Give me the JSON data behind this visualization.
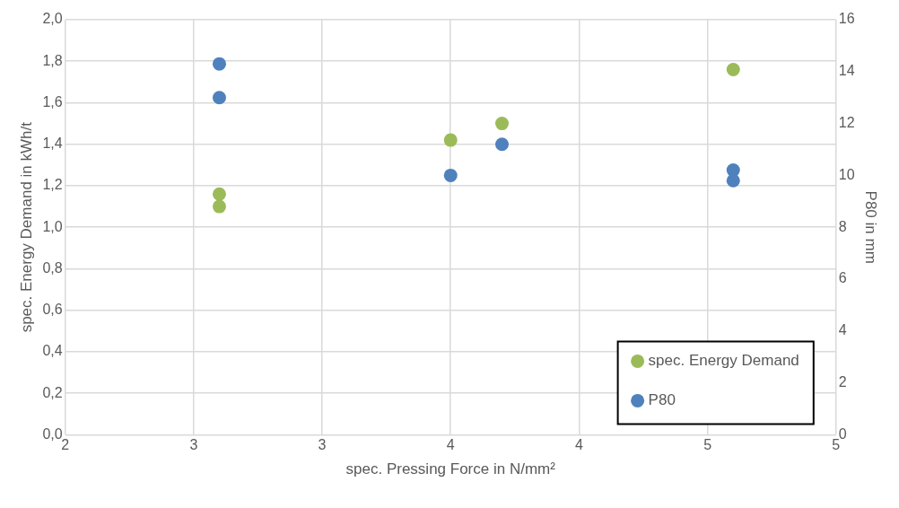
{
  "chart_data": {
    "type": "scatter",
    "xlabel": "spec. Pressing Force in N/mm²",
    "ylabel": "spec. Energy Demand in kWh/t",
    "y2label": "P80 in mm",
    "xlim": [
      2,
      5
    ],
    "xticks": [
      2,
      {
        "value": 2.5,
        "label": "3"
      },
      3,
      {
        "value": 3.5,
        "label": "4"
      },
      4,
      {
        "value": 4.5,
        "label": "5"
      },
      5
    ],
    "ylim": [
      0,
      2
    ],
    "yticks": [
      {
        "value": 0,
        "label": "0,0"
      },
      {
        "value": 0.2,
        "label": "0,2"
      },
      {
        "value": 0.4,
        "label": "0,4"
      },
      {
        "value": 0.6,
        "label": "0,6"
      },
      {
        "value": 0.8,
        "label": "0,8"
      },
      {
        "value": 1,
        "label": "1,0"
      },
      {
        "value": 1.2,
        "label": "1,2"
      },
      {
        "value": 1.4,
        "label": "1,4"
      },
      {
        "value": 1.6,
        "label": "1,6"
      },
      {
        "value": 1.8,
        "label": "1,8"
      },
      {
        "value": 2,
        "label": "2,0"
      }
    ],
    "y2lim": [
      0,
      16
    ],
    "y2ticks": [
      0,
      2,
      4,
      6,
      8,
      10,
      12,
      14,
      16
    ],
    "grid": true,
    "legend": "bottom right",
    "marker": "circle",
    "series": [
      {
        "name": "spec. Energy Demand",
        "color": "#9bbb59",
        "x": [
          2.6,
          2.6,
          3.5,
          3.7,
          4.6
        ],
        "values": [
          1.16,
          1.1,
          1.42,
          1.5,
          1.76
        ]
      },
      {
        "name": "P80",
        "color": "#4f81bd",
        "axis": "y2",
        "x": [
          2.6,
          2.6,
          3.5,
          3.7,
          4.6,
          4.6
        ],
        "values": [
          14.3,
          13.0,
          10.0,
          11.2,
          10.2,
          9.8
        ]
      }
    ]
  }
}
